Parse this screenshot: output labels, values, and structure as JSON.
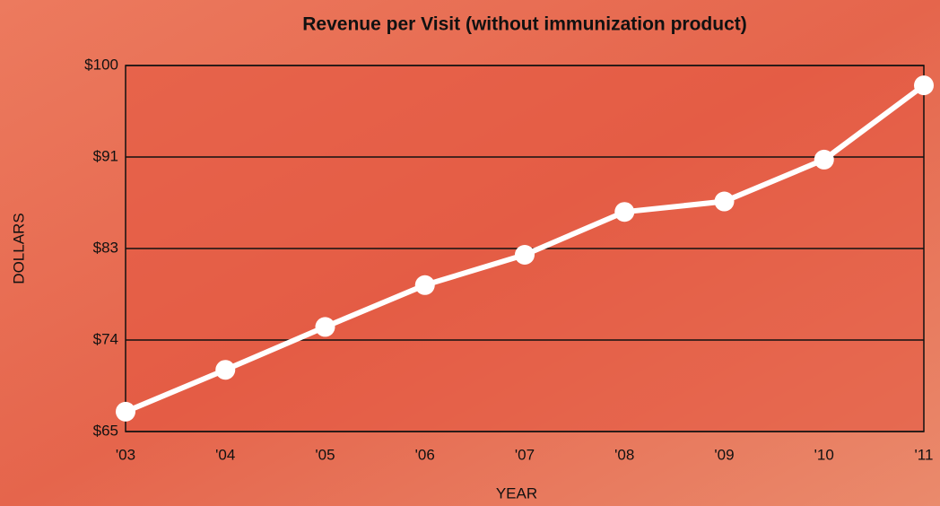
{
  "chart_data": {
    "type": "line",
    "title": "Revenue per Visit (without immunization product)",
    "x_label": "YEAR",
    "y_label": "DOLLARS",
    "categories": [
      "'03",
      "'04",
      "'05",
      "'06",
      "'07",
      "'08",
      "'09",
      "'10",
      "'11"
    ],
    "values": [
      66.9,
      70.9,
      75.0,
      79.0,
      81.9,
      86.0,
      87.0,
      91.0,
      98.1
    ],
    "color": "#ffffff",
    "ylim": [
      65,
      100
    ],
    "yticks": [
      {
        "value": 65,
        "label": "$65"
      },
      {
        "value": 73.75,
        "label": "$74"
      },
      {
        "value": 82.5,
        "label": "$83"
      },
      {
        "value": 91.25,
        "label": "$91"
      },
      {
        "value": 100,
        "label": "$100"
      }
    ],
    "grid": true
  }
}
